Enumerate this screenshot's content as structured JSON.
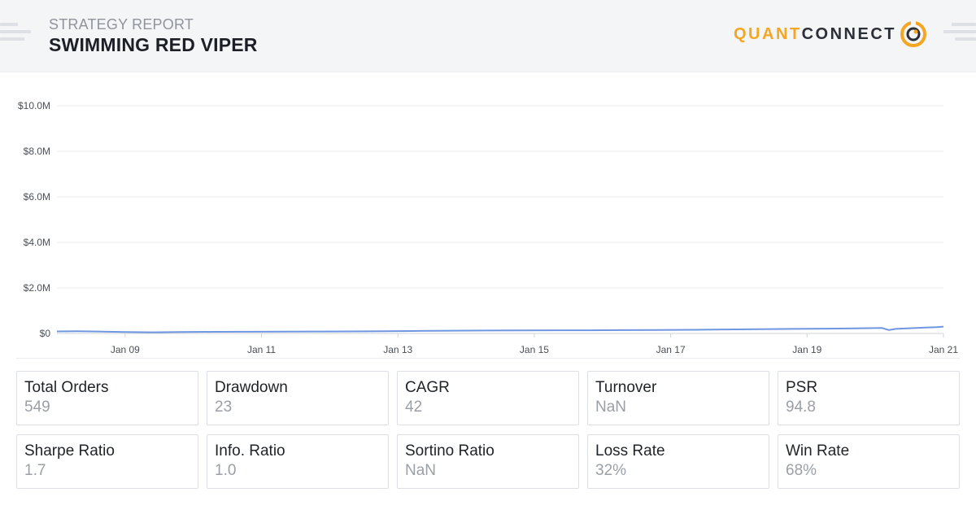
{
  "header": {
    "subtitle": "STRATEGY REPORT",
    "title": "SWIMMING RED VIPER",
    "logo_part1": "QUANT",
    "logo_part2": "CONNECT",
    "logo_icon": "quantconnect-logo-icon",
    "accent_color": "#f5a623"
  },
  "chart_data": {
    "type": "line",
    "title": "",
    "xlabel": "",
    "ylabel": "",
    "ylim": [
      0,
      10000000
    ],
    "yticks": [
      {
        "value": 0,
        "label": "$0"
      },
      {
        "value": 2000000,
        "label": "$2.0M"
      },
      {
        "value": 4000000,
        "label": "$4.0M"
      },
      {
        "value": 6000000,
        "label": "$6.0M"
      },
      {
        "value": 8000000,
        "label": "$8.0M"
      },
      {
        "value": 10000000,
        "label": "$10.0M"
      }
    ],
    "xlim": [
      2008.0,
      2021.0
    ],
    "xticks": [
      {
        "value": 2009,
        "label": "Jan 09"
      },
      {
        "value": 2011,
        "label": "Jan 11"
      },
      {
        "value": 2013,
        "label": "Jan 13"
      },
      {
        "value": 2015,
        "label": "Jan 15"
      },
      {
        "value": 2017,
        "label": "Jan 17"
      },
      {
        "value": 2019,
        "label": "Jan 19"
      },
      {
        "value": 2021,
        "label": "Jan 21"
      }
    ],
    "grid": true,
    "line_color": "#6f96e0",
    "series": [
      {
        "x": [
          2008.0,
          2008.3,
          2008.6,
          2009.0,
          2009.4,
          2009.8,
          2010.3,
          2010.8,
          2011.3,
          2011.8,
          2012.3,
          2012.8,
          2013.3,
          2013.8,
          2014.3,
          2014.8,
          2015.3,
          2015.8,
          2016.3,
          2016.8,
          2017.3,
          2017.8,
          2018.3,
          2018.8,
          2019.3,
          2019.7,
          2020.1,
          2020.2,
          2020.3,
          2020.6,
          2020.9,
          2021.0
        ],
        "y": [
          90000,
          95000,
          85000,
          60000,
          50000,
          60000,
          70000,
          75000,
          80000,
          85000,
          90000,
          100000,
          110000,
          120000,
          130000,
          135000,
          140000,
          140000,
          145000,
          150000,
          160000,
          175000,
          190000,
          200000,
          210000,
          220000,
          240000,
          150000,
          200000,
          240000,
          280000,
          300000
        ]
      }
    ]
  },
  "metrics": [
    {
      "label": "Total Orders",
      "value": "549"
    },
    {
      "label": "Drawdown",
      "value": "23"
    },
    {
      "label": "CAGR",
      "value": "42"
    },
    {
      "label": "Turnover",
      "value": "NaN"
    },
    {
      "label": "PSR",
      "value": "94.8"
    },
    {
      "label": "Sharpe Ratio",
      "value": "1.7"
    },
    {
      "label": "Info. Ratio",
      "value": "1.0"
    },
    {
      "label": "Sortino Ratio",
      "value": "NaN"
    },
    {
      "label": "Loss Rate",
      "value": "32%"
    },
    {
      "label": "Win Rate",
      "value": "68%"
    }
  ]
}
